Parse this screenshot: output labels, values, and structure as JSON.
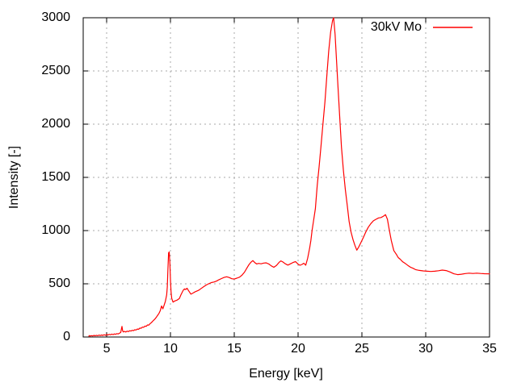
{
  "chart_data": {
    "type": "line",
    "title": "",
    "xlabel": "Energy [keV]",
    "ylabel": "Intensity [-]",
    "xlim": [
      3.16,
      35
    ],
    "ylim": [
      0,
      3000
    ],
    "xticks": [
      5,
      10,
      15,
      20,
      25,
      30,
      35
    ],
    "yticks": [
      0,
      500,
      1000,
      1500,
      2000,
      2500,
      3000
    ],
    "grid": true,
    "legend_position": "top-right-inside",
    "colors": {
      "line": "#ff0000",
      "grid": "#a8a8a8",
      "frame": "#000000",
      "text": "#000000"
    },
    "series": [
      {
        "name": "30kV Mo",
        "color": "#ff0000",
        "points": [
          [
            3.6,
            8
          ],
          [
            3.65,
            14
          ],
          [
            3.7,
            9
          ],
          [
            3.8,
            13
          ],
          [
            3.9,
            10
          ],
          [
            4.0,
            15
          ],
          [
            4.1,
            11
          ],
          [
            4.2,
            16
          ],
          [
            4.3,
            12
          ],
          [
            4.4,
            18
          ],
          [
            4.5,
            14
          ],
          [
            4.6,
            19
          ],
          [
            4.7,
            15
          ],
          [
            4.8,
            21
          ],
          [
            4.9,
            17
          ],
          [
            5.0,
            23
          ],
          [
            5.1,
            19
          ],
          [
            5.2,
            25
          ],
          [
            5.3,
            21
          ],
          [
            5.4,
            27
          ],
          [
            5.5,
            23
          ],
          [
            5.6,
            29
          ],
          [
            5.7,
            26
          ],
          [
            5.8,
            32
          ],
          [
            5.9,
            29
          ],
          [
            6.0,
            36
          ],
          [
            6.1,
            42
          ],
          [
            6.2,
            100
          ],
          [
            6.25,
            60
          ],
          [
            6.3,
            48
          ],
          [
            6.4,
            52
          ],
          [
            6.5,
            47
          ],
          [
            6.6,
            55
          ],
          [
            6.7,
            51
          ],
          [
            6.8,
            59
          ],
          [
            6.9,
            56
          ],
          [
            7.0,
            63
          ],
          [
            7.1,
            60
          ],
          [
            7.2,
            68
          ],
          [
            7.3,
            66
          ],
          [
            7.4,
            75
          ],
          [
            7.5,
            73
          ],
          [
            7.6,
            84
          ],
          [
            7.7,
            82
          ],
          [
            7.8,
            93
          ],
          [
            7.9,
            91
          ],
          [
            8.0,
            103
          ],
          [
            8.1,
            100
          ],
          [
            8.2,
            114
          ],
          [
            8.3,
            111
          ],
          [
            8.4,
            126
          ],
          [
            8.5,
            135
          ],
          [
            8.6,
            148
          ],
          [
            8.7,
            160
          ],
          [
            8.8,
            172
          ],
          [
            8.9,
            188
          ],
          [
            9.0,
            205
          ],
          [
            9.1,
            222
          ],
          [
            9.2,
            248
          ],
          [
            9.3,
            292
          ],
          [
            9.4,
            265
          ],
          [
            9.5,
            300
          ],
          [
            9.6,
            335
          ],
          [
            9.7,
            395
          ],
          [
            9.75,
            470
          ],
          [
            9.8,
            640
          ],
          [
            9.85,
            790
          ],
          [
            9.9,
            800
          ],
          [
            9.95,
            690
          ],
          [
            10.0,
            520
          ],
          [
            10.05,
            420
          ],
          [
            10.1,
            362
          ],
          [
            10.2,
            328
          ],
          [
            10.3,
            336
          ],
          [
            10.4,
            342
          ],
          [
            10.5,
            346
          ],
          [
            10.6,
            353
          ],
          [
            10.7,
            363
          ],
          [
            10.8,
            392
          ],
          [
            10.9,
            417
          ],
          [
            11.0,
            440
          ],
          [
            11.1,
            452
          ],
          [
            11.2,
            447
          ],
          [
            11.3,
            458
          ],
          [
            11.4,
            438
          ],
          [
            11.5,
            420
          ],
          [
            11.6,
            403
          ],
          [
            11.7,
            409
          ],
          [
            11.8,
            416
          ],
          [
            11.9,
            423
          ],
          [
            12.0,
            429
          ],
          [
            12.2,
            439
          ],
          [
            12.4,
            456
          ],
          [
            12.6,
            473
          ],
          [
            12.8,
            489
          ],
          [
            13.0,
            501
          ],
          [
            13.2,
            511
          ],
          [
            13.4,
            517
          ],
          [
            13.6,
            525
          ],
          [
            13.8,
            539
          ],
          [
            14.0,
            549
          ],
          [
            14.2,
            560
          ],
          [
            14.4,
            566
          ],
          [
            14.6,
            559
          ],
          [
            14.8,
            548
          ],
          [
            15.0,
            545
          ],
          [
            15.2,
            553
          ],
          [
            15.4,
            562
          ],
          [
            15.6,
            580
          ],
          [
            15.8,
            610
          ],
          [
            16.0,
            650
          ],
          [
            16.15,
            680
          ],
          [
            16.3,
            702
          ],
          [
            16.45,
            718
          ],
          [
            16.6,
            700
          ],
          [
            16.75,
            686
          ],
          [
            16.9,
            692
          ],
          [
            17.1,
            688
          ],
          [
            17.3,
            695
          ],
          [
            17.5,
            697
          ],
          [
            17.7,
            686
          ],
          [
            17.9,
            668
          ],
          [
            18.1,
            655
          ],
          [
            18.3,
            672
          ],
          [
            18.5,
            700
          ],
          [
            18.65,
            715
          ],
          [
            18.8,
            705
          ],
          [
            19.0,
            688
          ],
          [
            19.2,
            676
          ],
          [
            19.4,
            688
          ],
          [
            19.6,
            700
          ],
          [
            19.8,
            708
          ],
          [
            20.0,
            684
          ],
          [
            20.15,
            674
          ],
          [
            20.3,
            682
          ],
          [
            20.45,
            693
          ],
          [
            20.6,
            675
          ],
          [
            20.75,
            742
          ],
          [
            20.9,
            835
          ],
          [
            21.0,
            905
          ],
          [
            21.1,
            1005
          ],
          [
            21.2,
            1085
          ],
          [
            21.35,
            1205
          ],
          [
            21.5,
            1425
          ],
          [
            21.65,
            1605
          ],
          [
            21.8,
            1805
          ],
          [
            21.95,
            2005
          ],
          [
            22.1,
            2205
          ],
          [
            22.25,
            2455
          ],
          [
            22.4,
            2685
          ],
          [
            22.55,
            2865
          ],
          [
            22.7,
            2975
          ],
          [
            22.78,
            3000
          ],
          [
            22.9,
            2845
          ],
          [
            23.0,
            2625
          ],
          [
            23.1,
            2405
          ],
          [
            23.25,
            2085
          ],
          [
            23.4,
            1785
          ],
          [
            23.55,
            1565
          ],
          [
            23.7,
            1385
          ],
          [
            23.85,
            1235
          ],
          [
            24.0,
            1085
          ],
          [
            24.15,
            985
          ],
          [
            24.3,
            915
          ],
          [
            24.45,
            862
          ],
          [
            24.6,
            816
          ],
          [
            24.75,
            846
          ],
          [
            24.9,
            882
          ],
          [
            25.1,
            932
          ],
          [
            25.3,
            986
          ],
          [
            25.5,
            1032
          ],
          [
            25.7,
            1066
          ],
          [
            25.9,
            1092
          ],
          [
            26.1,
            1106
          ],
          [
            26.3,
            1119
          ],
          [
            26.5,
            1123
          ],
          [
            26.7,
            1136
          ],
          [
            26.85,
            1150
          ],
          [
            27.0,
            1106
          ],
          [
            27.15,
            1002
          ],
          [
            27.3,
            906
          ],
          [
            27.5,
            812
          ],
          [
            27.7,
            776
          ],
          [
            27.85,
            746
          ],
          [
            28.0,
            731
          ],
          [
            28.2,
            706
          ],
          [
            28.4,
            691
          ],
          [
            28.6,
            673
          ],
          [
            28.8,
            656
          ],
          [
            29.0,
            646
          ],
          [
            29.2,
            633
          ],
          [
            29.5,
            626
          ],
          [
            29.8,
            621
          ],
          [
            30.1,
            618
          ],
          [
            30.4,
            616
          ],
          [
            30.7,
            618
          ],
          [
            31.0,
            623
          ],
          [
            31.3,
            629
          ],
          [
            31.6,
            624
          ],
          [
            31.9,
            611
          ],
          [
            32.2,
            594
          ],
          [
            32.5,
            586
          ],
          [
            32.8,
            590
          ],
          [
            33.1,
            596
          ],
          [
            33.4,
            600
          ],
          [
            33.7,
            597
          ],
          [
            34.0,
            600
          ],
          [
            34.3,
            597
          ],
          [
            34.6,
            595
          ],
          [
            35.0,
            593
          ]
        ]
      }
    ]
  }
}
